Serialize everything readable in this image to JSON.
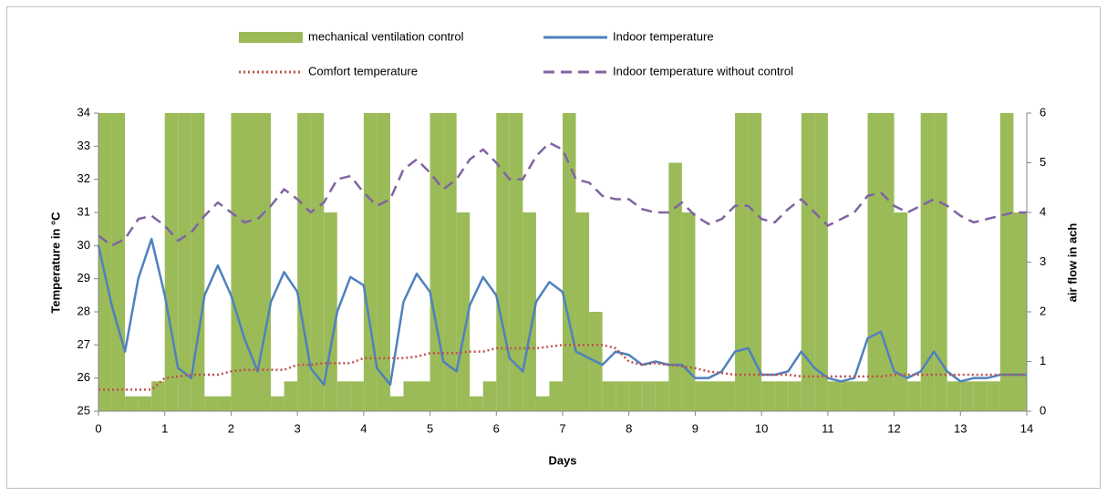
{
  "chart_data": {
    "type": "combo",
    "x_label": "Days",
    "y_label": "Temperature in °C",
    "y2_label": "air flow in ach",
    "x": [
      0,
      0.2,
      0.4,
      0.6,
      0.8,
      1,
      1.2,
      1.4,
      1.6,
      1.8,
      2,
      2.2,
      2.4,
      2.6,
      2.8,
      3,
      3.2,
      3.4,
      3.6,
      3.8,
      4,
      4.2,
      4.4,
      4.6,
      4.8,
      5,
      5.2,
      5.4,
      5.6,
      5.8,
      6,
      6.2,
      6.4,
      6.6,
      6.8,
      7,
      7.2,
      7.4,
      7.6,
      7.8,
      8,
      8.2,
      8.4,
      8.6,
      8.8,
      9,
      9.2,
      9.4,
      9.6,
      9.8,
      10,
      10.2,
      10.4,
      10.6,
      10.8,
      11,
      11.2,
      11.4,
      11.6,
      11.8,
      12,
      12.2,
      12.4,
      12.6,
      12.8,
      13,
      13.2,
      13.4,
      13.6,
      13.8,
      14
    ],
    "series": [
      {
        "name": "mechanical ventilation control",
        "type": "bar",
        "axis": "y2",
        "color": "#9bbb59",
        "style": "solid",
        "values": [
          6,
          6,
          0.3,
          0.3,
          0.6,
          6,
          6,
          6,
          0.3,
          0.3,
          6,
          6,
          6,
          0.3,
          0.6,
          6,
          6,
          4,
          0.6,
          0.6,
          6,
          6,
          0.3,
          0.6,
          0.6,
          6,
          6,
          4,
          0.3,
          0.6,
          6,
          6,
          4,
          0.3,
          0.6,
          6,
          4,
          2,
          0.6,
          0.6,
          0.6,
          0.6,
          0.6,
          5,
          4,
          0.6,
          0.6,
          0.6,
          6,
          6,
          0.6,
          0.6,
          0.6,
          6,
          6,
          0.6,
          0.6,
          0.6,
          6,
          6,
          4,
          0.6,
          6,
          6,
          0.6,
          0.6,
          0.6,
          0.6,
          6,
          4,
          0.6
        ]
      },
      {
        "name": "Indoor temperature",
        "type": "line",
        "axis": "y",
        "color": "#4f81bd",
        "style": "solid",
        "values": [
          30.0,
          28.2,
          26.8,
          29.0,
          30.2,
          28.5,
          26.3,
          26.0,
          28.5,
          29.4,
          28.5,
          27.2,
          26.2,
          28.3,
          29.2,
          28.6,
          26.3,
          25.8,
          28.0,
          29.05,
          28.8,
          26.3,
          25.8,
          28.3,
          29.15,
          28.6,
          26.5,
          26.2,
          28.2,
          29.05,
          28.5,
          26.6,
          26.2,
          28.3,
          28.9,
          28.6,
          26.8,
          26.6,
          26.4,
          26.8,
          26.7,
          26.4,
          26.5,
          26.4,
          26.4,
          26.0,
          26.0,
          26.2,
          26.8,
          26.9,
          26.1,
          26.1,
          26.2,
          26.8,
          26.3,
          26.0,
          25.9,
          26.0,
          27.2,
          27.4,
          26.2,
          26.0,
          26.2,
          26.8,
          26.2,
          25.9,
          26.0,
          26.0,
          26.1,
          26.1,
          26.1
        ]
      },
      {
        "name": "Comfort temperature",
        "type": "line",
        "axis": "y",
        "color": "#c0504d",
        "style": "dotted",
        "values": [
          25.65,
          25.65,
          25.65,
          25.65,
          25.65,
          26.0,
          26.05,
          26.1,
          26.1,
          26.1,
          26.2,
          26.25,
          26.25,
          26.25,
          26.25,
          26.4,
          26.4,
          26.45,
          26.45,
          26.45,
          26.6,
          26.6,
          26.6,
          26.6,
          26.65,
          26.75,
          26.75,
          26.75,
          26.8,
          26.8,
          26.9,
          26.9,
          26.9,
          26.9,
          26.95,
          27.0,
          27.0,
          27.0,
          27.0,
          26.9,
          26.5,
          26.4,
          26.45,
          26.4,
          26.35,
          26.3,
          26.2,
          26.15,
          26.1,
          26.1,
          26.1,
          26.1,
          26.1,
          26.05,
          26.05,
          26.05,
          26.05,
          26.05,
          26.05,
          26.05,
          26.1,
          26.1,
          26.1,
          26.1,
          26.1,
          26.1,
          26.1,
          26.1,
          26.1,
          26.1,
          26.1
        ]
      },
      {
        "name": "Indoor temperature without control",
        "type": "line",
        "axis": "y",
        "color": "#8064a2",
        "style": "dashed",
        "values": [
          30.3,
          30.0,
          30.2,
          30.8,
          30.9,
          30.6,
          30.15,
          30.4,
          30.9,
          31.3,
          31.0,
          30.7,
          30.8,
          31.2,
          31.7,
          31.4,
          31.0,
          31.3,
          32.0,
          32.1,
          31.6,
          31.2,
          31.4,
          32.3,
          32.6,
          32.2,
          31.7,
          32.0,
          32.6,
          32.9,
          32.5,
          32.0,
          32.0,
          32.7,
          33.1,
          32.9,
          32.0,
          31.9,
          31.5,
          31.4,
          31.4,
          31.1,
          31.0,
          31.0,
          31.3,
          30.9,
          30.65,
          30.8,
          31.2,
          31.2,
          30.8,
          30.7,
          31.1,
          31.4,
          31.0,
          30.6,
          30.8,
          31.0,
          31.5,
          31.6,
          31.2,
          31.0,
          31.2,
          31.4,
          31.2,
          30.9,
          30.7,
          30.8,
          30.9,
          31.0,
          31.0
        ]
      }
    ],
    "xlim": [
      0,
      14
    ],
    "xticks": [
      0,
      1,
      2,
      3,
      4,
      5,
      6,
      7,
      8,
      9,
      10,
      11,
      12,
      13,
      14
    ],
    "ylim": [
      25,
      34
    ],
    "yticks": [
      25,
      26,
      27,
      28,
      29,
      30,
      31,
      32,
      33,
      34
    ],
    "y2lim": [
      0,
      6
    ],
    "y2ticks": [
      0,
      1,
      2,
      3,
      4,
      5,
      6
    ],
    "grid": false
  }
}
